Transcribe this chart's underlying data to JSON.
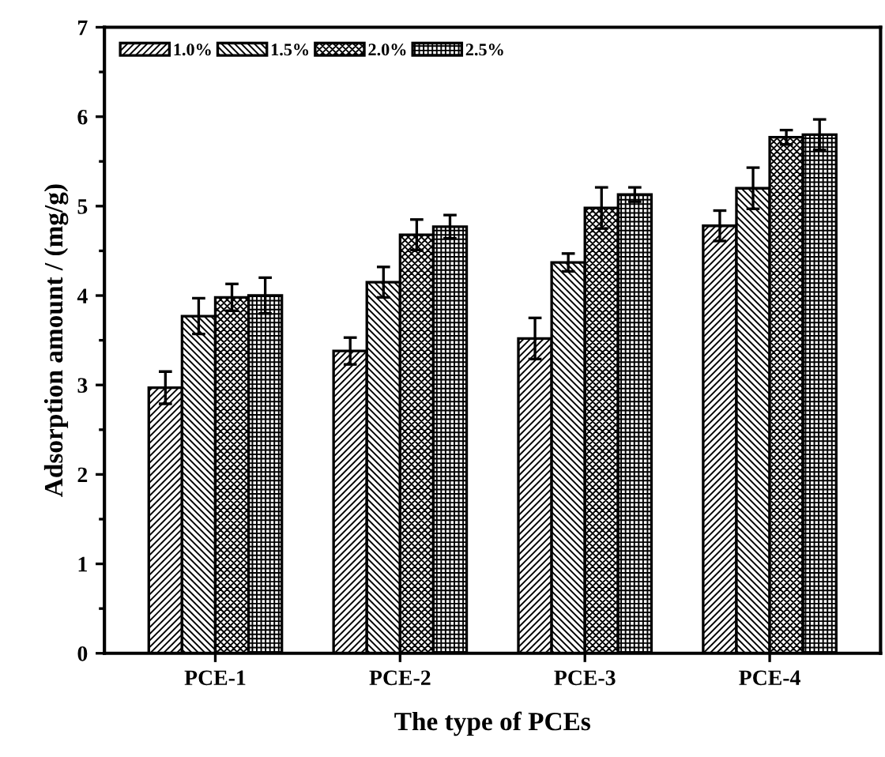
{
  "chart_data": {
    "type": "bar",
    "xlabel": "The type of PCEs",
    "ylabel": "Adsorption amount / (mg/g)",
    "categories": [
      "PCE-1",
      "PCE-2",
      "PCE-3",
      "PCE-4"
    ],
    "series": [
      {
        "name": "1.0%",
        "color": "#000000",
        "values": [
          2.97,
          3.38,
          3.52,
          4.78
        ],
        "errors": [
          0.18,
          0.15,
          0.23,
          0.17
        ]
      },
      {
        "name": "1.5%",
        "color": "#000000",
        "values": [
          3.77,
          4.15,
          4.37,
          5.2
        ],
        "errors": [
          0.2,
          0.17,
          0.1,
          0.23
        ]
      },
      {
        "name": "2.0%",
        "color": "#000000",
        "values": [
          3.98,
          4.68,
          4.98,
          5.77
        ],
        "errors": [
          0.15,
          0.17,
          0.23,
          0.08
        ]
      },
      {
        "name": "2.5%",
        "color": "#000000",
        "values": [
          4.0,
          4.77,
          5.13,
          5.8
        ],
        "errors": [
          0.2,
          0.13,
          0.08,
          0.17
        ]
      }
    ],
    "ylim": [
      0,
      7
    ],
    "yticks": [
      0,
      1,
      2,
      3,
      4,
      5,
      6,
      7
    ],
    "grid": false,
    "legend": "top left"
  }
}
